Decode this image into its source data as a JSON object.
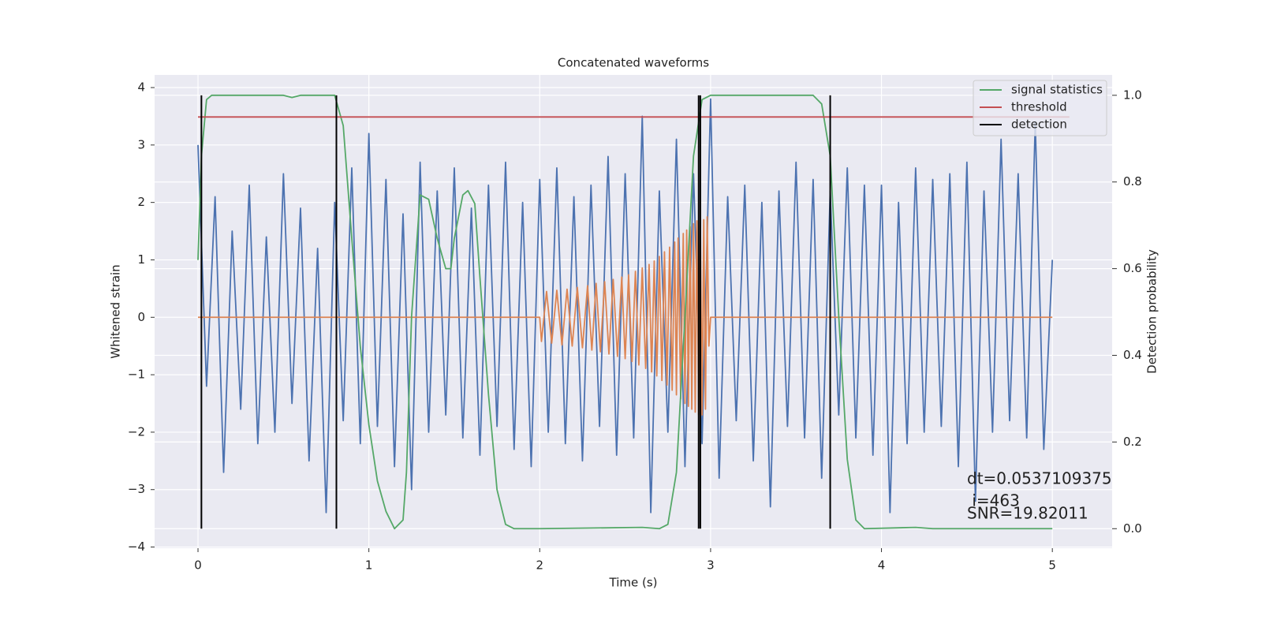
{
  "chart_data": {
    "type": "line",
    "title": "Concatenated waveforms",
    "xlabel": "Time (s)",
    "ylabel": "Whitened strain",
    "y2label": "Detection probability",
    "xlim": [
      -0.254,
      5.35
    ],
    "xticks": [
      0,
      1,
      2,
      3,
      4,
      5
    ],
    "ylim": [
      -4.02,
      4.22
    ],
    "yticks": [
      {
        "value": -4,
        "label": "−4"
      },
      {
        "value": -3,
        "label": "−3"
      },
      {
        "value": -2,
        "label": "−2"
      },
      {
        "value": -1,
        "label": "−1"
      },
      0,
      1,
      2,
      3,
      4
    ],
    "y2lim": [
      -0.045,
      1.047
    ],
    "y2ticks": [
      {
        "value": 0,
        "label": "0.0"
      },
      {
        "value": 0.2,
        "label": "0.2"
      },
      {
        "value": 0.4,
        "label": "0.4"
      },
      {
        "value": 0.6,
        "label": "0.6"
      },
      {
        "value": 0.8,
        "label": "0.8"
      },
      {
        "value": 1,
        "label": "1.0"
      }
    ],
    "grid": true,
    "legend": "upper right",
    "series": [
      {
        "color": "#4c72b0",
        "x": [
          0,
          0.05,
          0.1,
          0.15,
          0.2,
          0.25,
          0.3,
          0.35,
          0.4,
          0.45,
          0.5,
          0.55,
          0.6,
          0.65,
          0.7,
          0.75,
          0.8,
          0.85,
          0.9,
          0.95,
          1,
          1.05,
          1.1,
          1.15,
          1.2,
          1.25,
          1.3,
          1.35,
          1.4,
          1.45,
          1.5,
          1.55,
          1.6,
          1.65,
          1.7,
          1.75,
          1.8,
          1.85,
          1.9,
          1.95,
          2,
          2.05,
          2.1,
          2.15,
          2.2,
          2.25,
          2.3,
          2.35,
          2.4,
          2.45,
          2.5,
          2.55,
          2.6,
          2.65,
          2.7,
          2.75,
          2.8,
          2.85,
          2.9,
          2.95,
          3,
          3.05,
          3.1,
          3.15,
          3.2,
          3.25,
          3.3,
          3.35,
          3.4,
          3.45,
          3.5,
          3.55,
          3.6,
          3.65,
          3.7,
          3.75,
          3.8,
          3.85,
          3.9,
          3.95,
          4,
          4.05,
          4.1,
          4.15,
          4.2,
          4.25,
          4.3,
          4.35,
          4.4,
          4.45,
          4.5,
          4.55,
          4.6,
          4.65,
          4.7,
          4.75,
          4.8,
          4.85,
          4.9,
          4.95,
          5
        ],
        "values": [
          3.0,
          -1.2,
          2.1,
          -2.7,
          1.5,
          -1.6,
          2.3,
          -2.2,
          1.4,
          -2.0,
          2.5,
          -1.5,
          1.9,
          -2.5,
          1.2,
          -3.4,
          2.0,
          -1.8,
          2.6,
          -2.2,
          3.2,
          -1.9,
          2.4,
          -2.6,
          1.8,
          -3.0,
          2.7,
          -2.0,
          2.2,
          -1.7,
          2.6,
          -2.1,
          1.9,
          -2.4,
          2.3,
          -1.9,
          2.7,
          -2.3,
          2.0,
          -2.6,
          2.4,
          -2.0,
          2.6,
          -2.2,
          2.1,
          -2.5,
          2.3,
          -1.9,
          2.8,
          -2.4,
          2.5,
          -2.1,
          3.5,
          -3.4,
          2.2,
          -2.0,
          3.1,
          -2.6,
          2.5,
          -2.2,
          3.8,
          -2.8,
          2.1,
          -1.8,
          2.3,
          -2.5,
          2.0,
          -3.3,
          2.2,
          -1.9,
          2.7,
          -2.1,
          2.4,
          -2.8,
          2.2,
          -1.7,
          2.6,
          -2.1,
          2.3,
          -2.4,
          2.3,
          -3.4,
          2.0,
          -2.2,
          2.6,
          -2.0,
          2.4,
          -1.9,
          2.5,
          -2.6,
          2.7,
          -3.2,
          2.2,
          -2.0,
          3.1,
          -1.8,
          2.5,
          -2.1,
          3.4,
          -2.3,
          1.0
        ]
      },
      {
        "color": "#dd8452",
        "x": [
          0,
          2.0,
          2.01,
          2.04,
          2.07,
          2.1,
          2.13,
          2.16,
          2.19,
          2.22,
          2.25,
          2.28,
          2.305,
          2.33,
          2.355,
          2.38,
          2.405,
          2.43,
          2.455,
          2.48,
          2.5,
          2.52,
          2.54,
          2.56,
          2.58,
          2.6,
          2.62,
          2.64,
          2.655,
          2.67,
          2.685,
          2.7,
          2.715,
          2.73,
          2.745,
          2.76,
          2.775,
          2.79,
          2.8,
          2.81,
          2.825,
          2.84,
          2.85,
          2.86,
          2.87,
          2.88,
          2.89,
          2.9,
          2.91,
          2.92,
          2.93,
          2.94,
          2.95,
          2.96,
          2.97,
          2.98,
          2.99,
          3.0,
          5.0
        ],
        "values": [
          0,
          0,
          -0.42,
          0.45,
          -0.45,
          0.47,
          -0.48,
          0.49,
          -0.5,
          0.52,
          -0.53,
          0.55,
          -0.57,
          0.59,
          -0.6,
          0.62,
          -0.64,
          0.66,
          -0.68,
          0.7,
          -0.72,
          0.74,
          -0.77,
          0.8,
          -0.83,
          0.86,
          -0.89,
          0.92,
          -0.95,
          0.98,
          -1.02,
          1.06,
          -1.1,
          1.14,
          -1.18,
          1.22,
          -1.27,
          1.31,
          -1.35,
          1.38,
          -1.42,
          1.46,
          -1.5,
          1.52,
          -1.55,
          1.58,
          -1.6,
          1.63,
          -1.65,
          1.68,
          -1.7,
          1.72,
          -1.7,
          1.7,
          -1.6,
          1.75,
          -0.5,
          0,
          0
        ]
      },
      {
        "name": "signal statistics",
        "color": "#55a868",
        "axis": "y2",
        "x": [
          0,
          0.02,
          0.05,
          0.08,
          0.5,
          0.55,
          0.6,
          0.8,
          0.85,
          0.9,
          0.95,
          1.0,
          1.05,
          1.1,
          1.15,
          1.2,
          1.22,
          1.25,
          1.3,
          1.35,
          1.4,
          1.45,
          1.48,
          1.5,
          1.55,
          1.58,
          1.62,
          1.65,
          1.7,
          1.75,
          1.8,
          1.85,
          2.0,
          2.6,
          2.7,
          2.75,
          2.8,
          2.85,
          2.9,
          2.95,
          3.0,
          3.6,
          3.65,
          3.7,
          3.75,
          3.8,
          3.85,
          3.9,
          4.2,
          4.3,
          5.0
        ],
        "values": [
          0.62,
          0.86,
          0.99,
          1.0,
          1.0,
          0.995,
          1.0,
          1.0,
          0.93,
          0.67,
          0.42,
          0.24,
          0.11,
          0.04,
          0.0,
          0.02,
          0.13,
          0.49,
          0.77,
          0.76,
          0.67,
          0.6,
          0.6,
          0.67,
          0.77,
          0.78,
          0.75,
          0.58,
          0.31,
          0.09,
          0.01,
          0.0,
          0.0,
          0.003,
          0.0,
          0.01,
          0.13,
          0.49,
          0.86,
          0.99,
          1.0,
          1.0,
          0.98,
          0.86,
          0.49,
          0.16,
          0.02,
          0.0,
          0.003,
          0.0,
          0.0
        ]
      },
      {
        "name": "threshold",
        "color": "#c44e52",
        "axis": "y2",
        "x": [
          0,
          5.1
        ],
        "values": [
          0.95,
          0.95
        ]
      },
      {
        "name": "detection",
        "color": "#000000",
        "axis": "y2",
        "type": "vlines",
        "x": [
          0.02,
          0.81,
          2.93,
          2.94,
          3.7
        ],
        "ymin": 0,
        "ymax": 1
      }
    ],
    "annotations": [
      "dt=0.0537109375",
      " i=463",
      "SNR=19.82011"
    ]
  }
}
